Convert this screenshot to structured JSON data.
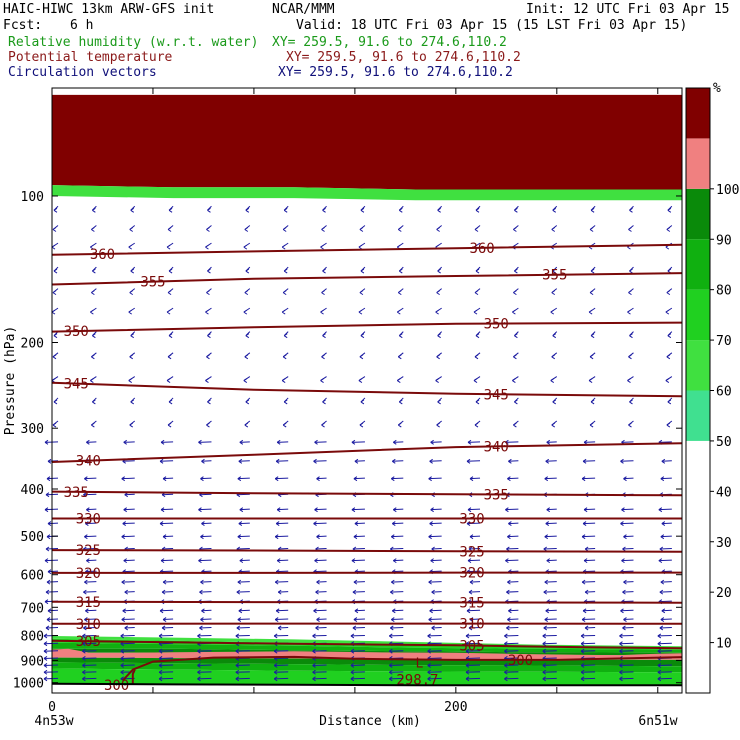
{
  "header": {
    "model": "HAIC-HIWC 13km ARW-GFS init",
    "org": "NCAR/MMM",
    "init": "Init: 12 UTC Fri 03 Apr 15",
    "fcst_label": "Fcst:",
    "fcst_value": "6 h",
    "valid": "Valid: 18 UTC Fri 03 Apr 15 (15 LST Fri 03 Apr 15)",
    "fields": [
      {
        "name": "Relative humidity (w.r.t. water)",
        "xy": "XY= 259.5, 91.6 to 274.6,110.2",
        "color": "#1a9a1a"
      },
      {
        "name": "Potential temperature",
        "xy": "XY= 259.5, 91.6 to 274.6,110.2",
        "color": "#8b1a1a"
      },
      {
        "name": "Circulation vectors",
        "xy": "XY= 259.5, 91.6 to 274.6,110.2",
        "color": "#10107a"
      }
    ]
  },
  "colors": {
    "theta": "#7a0a0a",
    "vector": "#1a1aa0",
    "ground": "#000000"
  },
  "chart_data": {
    "type": "heatmap",
    "title": "",
    "xlabel": "Distance (km)",
    "ylabel": "Pressure (hPa)",
    "xlim": [
      0,
      312
    ],
    "ylim": [
      1050,
      60
    ],
    "yscale": "log",
    "x_ticks": [
      0,
      200
    ],
    "y_ticks": [
      100,
      200,
      300,
      400,
      500,
      600,
      700,
      800,
      900,
      1000
    ],
    "x_end_labels": [
      "4n53w",
      "6n51w"
    ],
    "colorbar": {
      "unit": "%",
      "levels": [
        10,
        20,
        30,
        40,
        50,
        60,
        70,
        80,
        90,
        100
      ],
      "fills": [
        {
          "from": 0,
          "to": 50,
          "color": "#ffffff"
        },
        {
          "from": 50,
          "to": 60,
          "color": "#40e090"
        },
        {
          "from": 60,
          "to": 70,
          "color": "#40e040"
        },
        {
          "from": 70,
          "to": 80,
          "color": "#20d020"
        },
        {
          "from": 80,
          "to": 90,
          "color": "#10b010"
        },
        {
          "from": 90,
          "to": 100,
          "color": "#0a8a0a"
        },
        {
          "from": 100,
          "to": 110,
          "color": "#f08080"
        },
        {
          "from": 110,
          "to": 120,
          "color": "#800000"
        }
      ]
    },
    "rh_layers": [
      {
        "top": [
          802,
          808,
          815,
          825,
          835,
          842
        ],
        "bottom": [
          812,
          820,
          828,
          838,
          845,
          850
        ],
        "fill": 2
      },
      {
        "top": [
          812,
          820,
          828,
          838,
          845,
          850
        ],
        "bottom": [
          828,
          833,
          840,
          848,
          852,
          856
        ],
        "fill": 3
      },
      {
        "top": [
          828,
          833,
          840,
          848,
          852,
          856
        ],
        "bottom": [
          852,
          852,
          858,
          862,
          866,
          868
        ],
        "fill": 4
      },
      {
        "top": [
          852,
          852,
          858,
          862,
          866,
          868
        ],
        "bottom": [
          868,
          868,
          870,
          872,
          876,
          880
        ],
        "fill": 5
      },
      {
        "top": [
          868,
          868,
          870,
          872,
          876,
          880
        ],
        "bottom": [
          888,
          890,
          892,
          894,
          896,
          898
        ],
        "fill": 6
      },
      {
        "top": [
          888,
          890,
          892,
          894,
          896,
          898
        ],
        "bottom": [
          908,
          912,
          916,
          920,
          922,
          925
        ],
        "fill": 5
      },
      {
        "top": [
          908,
          912,
          916,
          920,
          922,
          925
        ],
        "bottom": [
          935,
          940,
          945,
          948,
          950,
          952
        ],
        "fill": 4
      },
      {
        "top": [
          935,
          940,
          945,
          948,
          950,
          952
        ],
        "bottom": [
          1005,
          1008,
          1010,
          1012,
          1012,
          1012
        ],
        "fill": 3
      },
      {
        "top": [
          62,
          62,
          62,
          62,
          62,
          62
        ],
        "bottom": [
          95,
          96,
          96,
          97,
          97,
          97
        ],
        "fill": 7
      },
      {
        "top": [
          95,
          96,
          96,
          97,
          97,
          97
        ],
        "bottom": [
          100,
          101,
          101,
          102,
          102,
          102
        ],
        "fill": 2
      }
    ],
    "rh_layer_x": [
      0,
      60,
      120,
      180,
      240,
      312
    ],
    "rh_sat_band": {
      "x": [
        0,
        8,
        20,
        60,
        120,
        160,
        200,
        240,
        280,
        300,
        312
      ],
      "top": [
        855,
        852,
        870,
        866,
        862,
        866,
        868,
        874,
        878,
        872,
        870
      ],
      "bottom": [
        880,
        885,
        882,
        880,
        886,
        892,
        895,
        897,
        896,
        888,
        885
      ],
      "fill": 6
    },
    "theta_contours": [
      {
        "label": "360",
        "x": [
          0,
          100,
          200,
          312
        ],
        "p": [
          132,
          130,
          128,
          126
        ],
        "label_x": [
          25,
          213
        ]
      },
      {
        "label": "355",
        "x": [
          0,
          100,
          200,
          312
        ],
        "p": [
          152,
          148,
          146,
          144
        ],
        "label_x": [
          50,
          249
        ]
      },
      {
        "label": "350",
        "x": [
          0,
          100,
          200,
          312
        ],
        "p": [
          190,
          186,
          183,
          182
        ],
        "label_x": [
          12,
          220
        ]
      },
      {
        "label": "345",
        "x": [
          0,
          100,
          200,
          312
        ],
        "p": [
          242,
          250,
          255,
          258
        ],
        "label_x": [
          12,
          220
        ]
      },
      {
        "label": "340",
        "x": [
          0,
          100,
          200,
          312
        ],
        "p": [
          352,
          340,
          328,
          322
        ],
        "label_x": [
          18,
          220
        ]
      },
      {
        "label": "335",
        "x": [
          0,
          100,
          200,
          312
        ],
        "p": [
          405,
          408,
          410,
          412
        ],
        "label_x": [
          12,
          220
        ]
      },
      {
        "label": "330",
        "x": [
          0,
          100,
          200,
          312
        ],
        "p": [
          460,
          460,
          460,
          460
        ],
        "label_x": [
          18,
          208
        ]
      },
      {
        "label": "325",
        "x": [
          0,
          100,
          200,
          312
        ],
        "p": [
          534,
          535,
          537,
          538
        ],
        "label_x": [
          18,
          208
        ]
      },
      {
        "label": "320",
        "x": [
          0,
          100,
          200,
          312
        ],
        "p": [
          595,
          595,
          594,
          594
        ],
        "label_x": [
          18,
          208
        ]
      },
      {
        "label": "315",
        "x": [
          0,
          100,
          200,
          312
        ],
        "p": [
          682,
          683,
          684,
          685
        ],
        "label_x": [
          18,
          208
        ]
      },
      {
        "label": "310",
        "x": [
          0,
          100,
          200,
          312
        ],
        "p": [
          757,
          756,
          756,
          757
        ],
        "label_x": [
          18,
          208
        ]
      },
      {
        "label": "305",
        "x": [
          0,
          60,
          120,
          200,
          260,
          312
        ],
        "p": [
          820,
          826,
          832,
          838,
          845,
          850
        ],
        "label_x": [
          18,
          208
        ]
      },
      {
        "label": "300",
        "x": [
          35,
          40,
          50,
          80,
          120,
          150,
          200,
          250,
          280,
          312
        ],
        "p": [
          990,
          940,
          905,
          888,
          885,
          893,
          898,
          898,
          892,
          886
        ],
        "label_x": [
          232
        ]
      },
      {
        "label": "300",
        "x": [
          40,
          40,
          41
        ],
        "p": [
          1010,
          960,
          940
        ],
        "label_x": [
          32
        ]
      }
    ],
    "theta_min_label": {
      "label": "298.7",
      "x": 178,
      "p": 985
    },
    "ground": {
      "x": [
        0,
        60,
        120,
        180,
        240,
        312
      ],
      "p": [
        1005,
        1008,
        1010,
        1012,
        1012,
        1012
      ]
    },
    "vectors": {
      "rows_p": [
        105,
        115,
        125,
        140,
        155,
        170,
        190,
        210,
        235,
        260,
        290,
        320,
        350,
        380,
        410,
        440,
        470,
        500,
        530,
        560,
        590,
        620,
        650,
        680,
        710,
        740,
        770,
        800,
        830,
        860,
        890,
        920,
        950,
        980
      ],
      "cols_x": [
        0,
        19,
        38,
        57,
        76,
        95,
        114,
        133,
        152,
        171,
        190,
        209,
        228,
        247,
        266,
        285,
        304
      ]
    }
  }
}
